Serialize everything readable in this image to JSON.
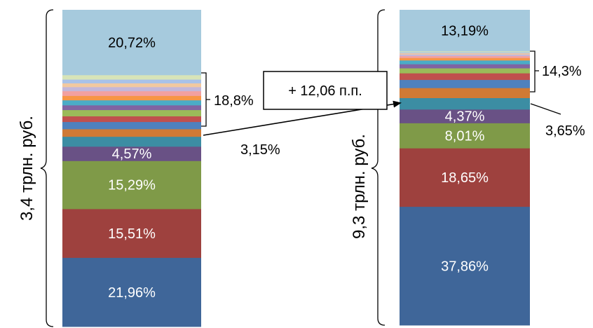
{
  "chart_data": {
    "type": "stacked-bar",
    "colors": [
      "#3F6699",
      "#9E413E",
      "#7F9A48",
      "#695185",
      "#3C8DA3",
      "#D07A35",
      "#4F81BD",
      "#C0504D",
      "#9BBB59",
      "#8064A2",
      "#4BACC6",
      "#F79646",
      "#F2A0A0",
      "#C3B7DA",
      "#F2C9A0",
      "#A9C2E8",
      "#D7E4B8",
      "#A6CADD"
    ],
    "bars": [
      {
        "total_label": "3,4 трлн. руб.",
        "segments": [
          {
            "value": 21.96,
            "label": "21,96%"
          },
          {
            "value": 15.51,
            "label": "15,51%"
          },
          {
            "value": 15.29,
            "label": "15,29%"
          },
          {
            "value": 4.57,
            "label": "4,57%"
          },
          {
            "value": 3.15,
            "label": "3,15%"
          },
          {
            "value": 2.4,
            "label": ""
          },
          {
            "value": 2.3,
            "label": ""
          },
          {
            "value": 1.8,
            "label": ""
          },
          {
            "value": 2.0,
            "label": ""
          },
          {
            "value": 1.5,
            "label": ""
          },
          {
            "value": 1.6,
            "label": ""
          },
          {
            "value": 1.4,
            "label": ""
          },
          {
            "value": 1.5,
            "label": ""
          },
          {
            "value": 1.3,
            "label": ""
          },
          {
            "value": 1.2,
            "label": ""
          },
          {
            "value": 1.2,
            "label": ""
          },
          {
            "value": 1.4,
            "label": ""
          },
          {
            "value": 20.72,
            "label": "20,72%"
          }
        ]
      },
      {
        "total_label": "9,3 трлн. руб.",
        "segments": [
          {
            "value": 37.86,
            "label": "37,86%"
          },
          {
            "value": 18.65,
            "label": "18,65%"
          },
          {
            "value": 8.01,
            "label": "8,01%"
          },
          {
            "value": 4.37,
            "label": "4,37%"
          },
          {
            "value": 3.65,
            "label": "3,65%"
          },
          {
            "value": 3.2,
            "label": ""
          },
          {
            "value": 2.6,
            "label": ""
          },
          {
            "value": 2.1,
            "label": ""
          },
          {
            "value": 1.6,
            "label": ""
          },
          {
            "value": 1.3,
            "label": ""
          },
          {
            "value": 1.2,
            "label": ""
          },
          {
            "value": 0.8,
            "label": ""
          },
          {
            "value": 0.6,
            "label": ""
          },
          {
            "value": 0.5,
            "label": ""
          },
          {
            "value": 0.4,
            "label": ""
          },
          {
            "value": 0.3,
            "label": ""
          },
          {
            "value": 0.3,
            "label": ""
          },
          {
            "value": 13.19,
            "label": "13,19%"
          }
        ]
      }
    ],
    "annotations": {
      "left_group": "18,8%",
      "left_small": "3,15%",
      "right_group": "14,3%",
      "right_small": "3,65%",
      "change": "+ 12,06 п.п."
    }
  }
}
